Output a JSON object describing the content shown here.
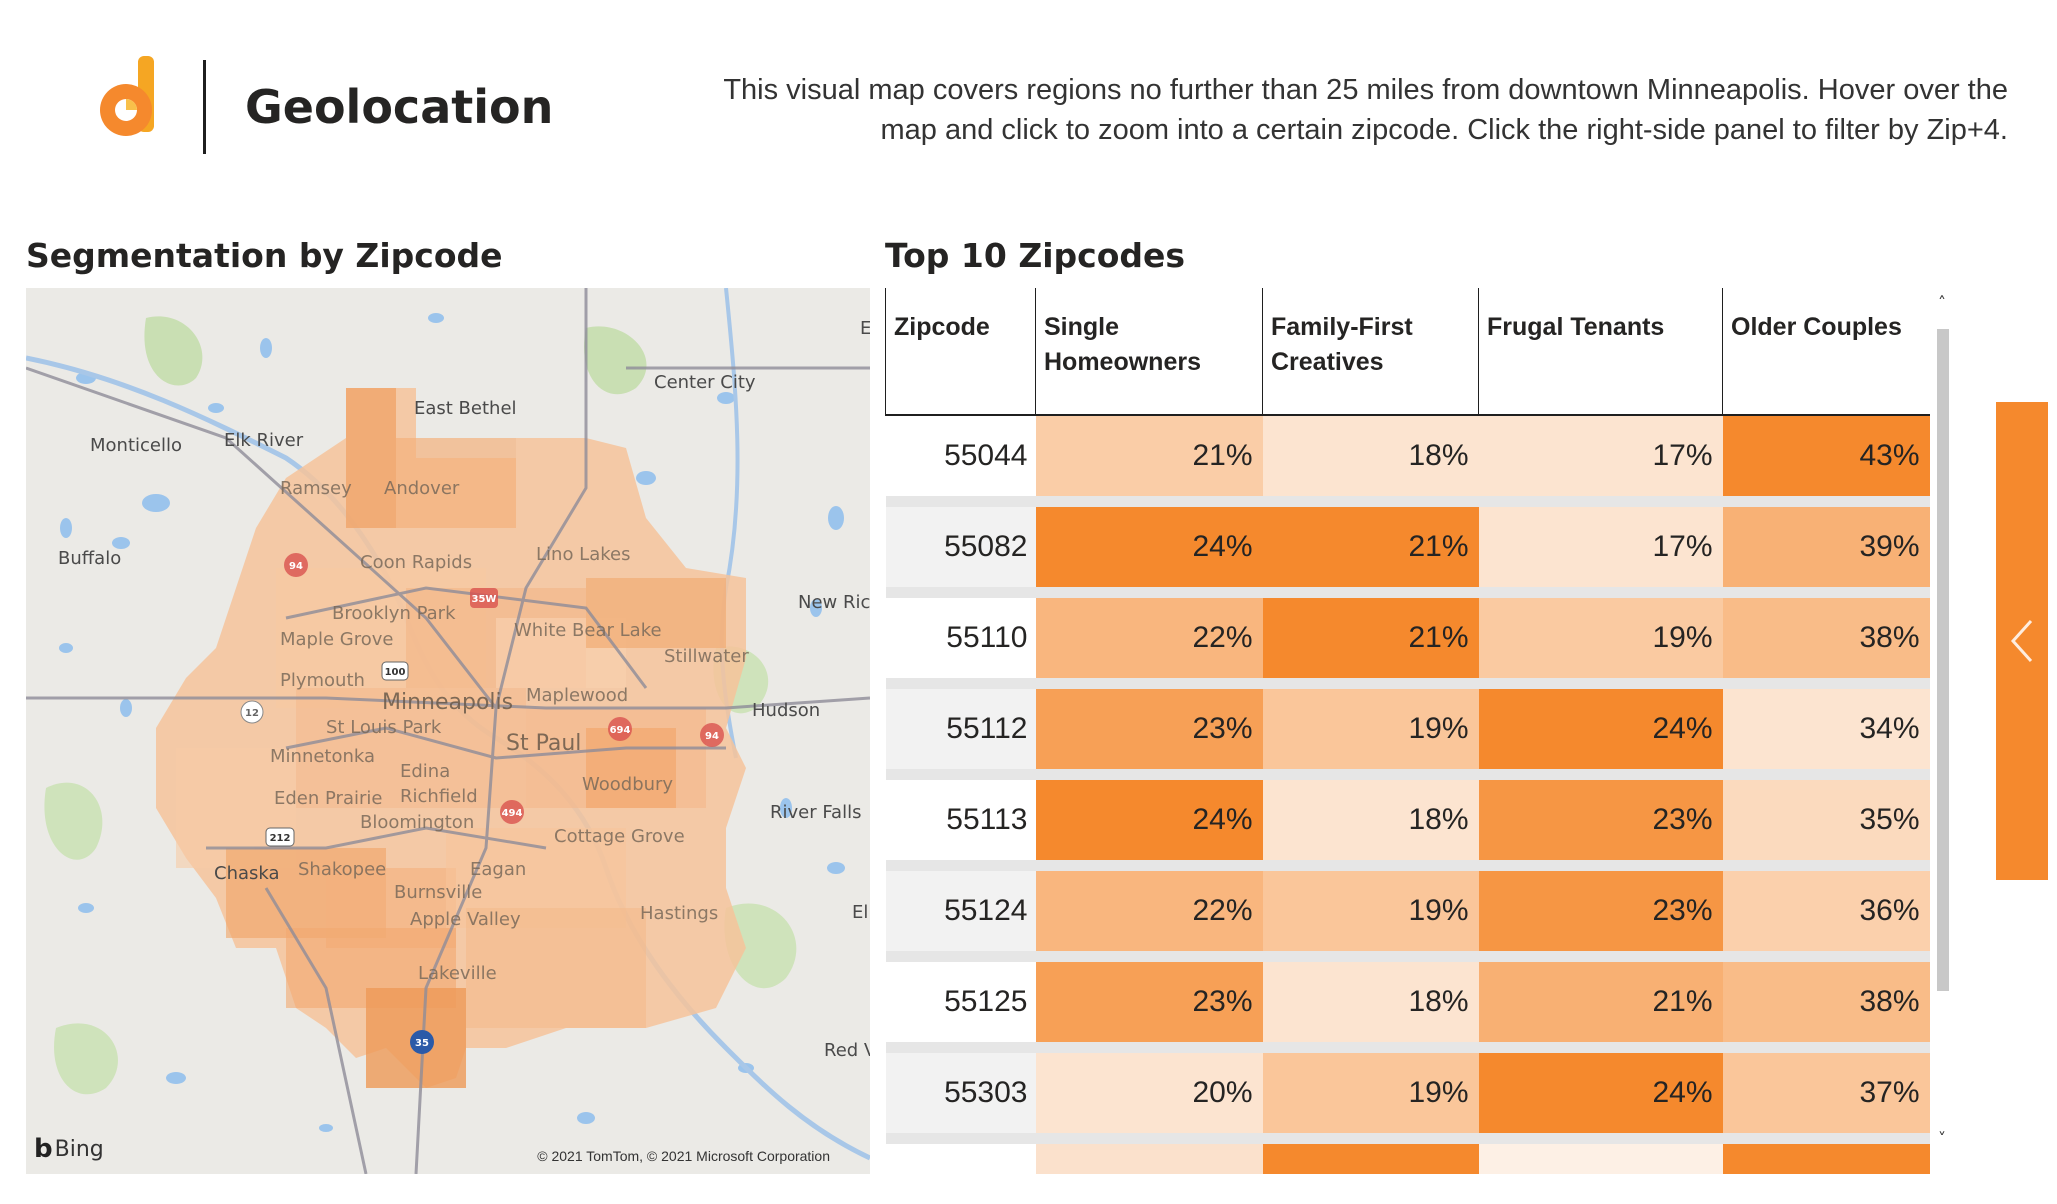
{
  "header": {
    "title": "Geolocation",
    "description": "This visual map covers regions no further than 25 miles from downtown Minneapolis. Hover over the map and click to zoom into a certain zipcode. Click the right-side panel to filter by Zip+4."
  },
  "map_section": {
    "title": "Segmentation by Zipcode",
    "provider": "Bing",
    "copyright": "© 2021 TomTom, © 2021 Microsoft Corporation",
    "places": [
      "East Bethel",
      "Center City",
      "Monticello",
      "Elk River",
      "Ramsey",
      "Andover",
      "Buffalo",
      "Coon Rapids",
      "Lino Lakes",
      "New Ric",
      "Brooklyn Park",
      "White Bear Lake",
      "Maple Grove",
      "Stillwater",
      "Plymouth",
      "Minneapolis",
      "Maplewood",
      "Hudson",
      "St Louis Park",
      "St Paul",
      "Minnetonka",
      "Edina",
      "Woodbury",
      "Eden Prairie",
      "Richfield",
      "River Falls",
      "Bloomington",
      "Cottage Grove",
      "Chaska",
      "Shakopee",
      "Eagan",
      "Burnsville",
      "Hastings",
      "El",
      "Apple Valley",
      "Lakeville",
      "Red V",
      "E"
    ],
    "road_shields": [
      "94",
      "35W",
      "100",
      "12",
      "694",
      "94",
      "212",
      "494",
      "35"
    ]
  },
  "table_section": {
    "title": "Top 10 Zipcodes",
    "columns": [
      "Zipcode",
      "Single Homeowners",
      "Family-First Creatives",
      "Frugal Tenants",
      "Older Couples"
    ],
    "rows": [
      {
        "zip": "55044",
        "values": [
          "21%",
          "18%",
          "17%",
          "43%"
        ]
      },
      {
        "zip": "55082",
        "values": [
          "24%",
          "21%",
          "17%",
          "39%"
        ]
      },
      {
        "zip": "55110",
        "values": [
          "22%",
          "21%",
          "19%",
          "38%"
        ]
      },
      {
        "zip": "55112",
        "values": [
          "23%",
          "19%",
          "24%",
          "34%"
        ]
      },
      {
        "zip": "55113",
        "values": [
          "24%",
          "18%",
          "23%",
          "35%"
        ]
      },
      {
        "zip": "55124",
        "values": [
          "22%",
          "19%",
          "23%",
          "36%"
        ]
      },
      {
        "zip": "55125",
        "values": [
          "23%",
          "18%",
          "21%",
          "38%"
        ]
      },
      {
        "zip": "55303",
        "values": [
          "20%",
          "19%",
          "24%",
          "37%"
        ]
      }
    ],
    "color_scale": {
      "low": "#fdeee2",
      "high": "#f5892d"
    }
  },
  "icons": {
    "logo": "brand-logo-icon",
    "side_panel": "chevron-left-icon",
    "scroll_up": "chevron-up-icon",
    "scroll_down": "chevron-down-icon"
  }
}
